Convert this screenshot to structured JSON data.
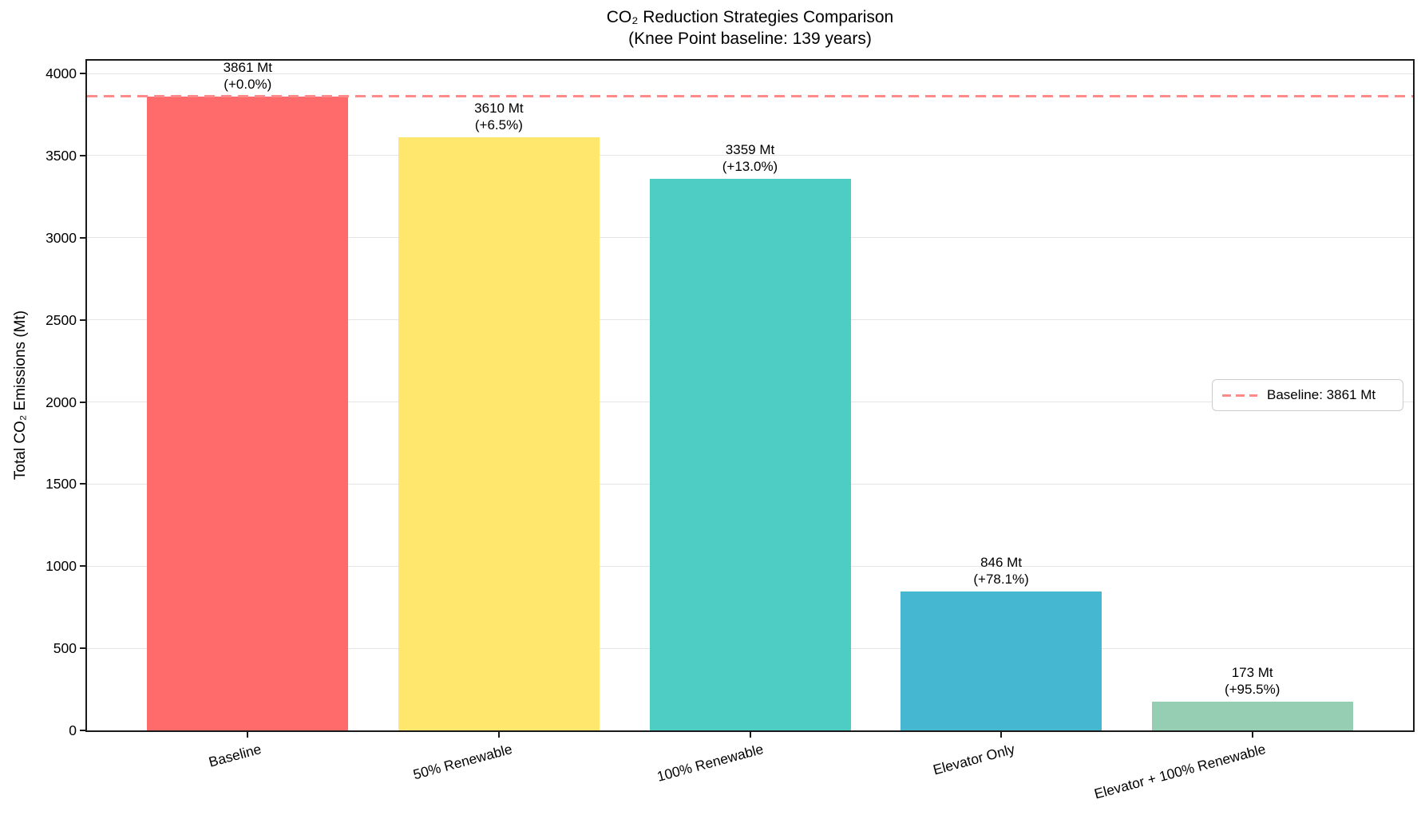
{
  "chart_data": {
    "type": "bar",
    "title": "CO₂ Reduction Strategies Comparison",
    "subtitle": "(Knee Point baseline: 139 years)",
    "ylabel": "Total CO₂ Emissions (Mt)",
    "categories": [
      "Baseline",
      "50% Renewable",
      "100% Renewable",
      "Elevator Only",
      "Elevator + 100% Renewable"
    ],
    "values": [
      3861,
      3610,
      3359,
      846,
      173
    ],
    "value_labels": [
      "3861 Mt",
      "3610 Mt",
      "3359 Mt",
      "846 Mt",
      "173 Mt"
    ],
    "pct_labels": [
      "(+0.0%)",
      "(+6.5%)",
      "(+13.0%)",
      "(+78.1%)",
      "(+95.5%)"
    ],
    "bar_colors": [
      "#FF6B6B",
      "#FFE66D",
      "#4ECDC4",
      "#45B7D1",
      "#96CEB4"
    ],
    "yticks": [
      0,
      500,
      1000,
      1500,
      2000,
      2500,
      3000,
      3500,
      4000
    ],
    "ylim": [
      0,
      4078
    ],
    "grid": true,
    "baseline": {
      "value": 3861,
      "color": "#FF8A8A",
      "legend_label": "Baseline: 3861 Mt",
      "legend_position": "center right"
    }
  }
}
